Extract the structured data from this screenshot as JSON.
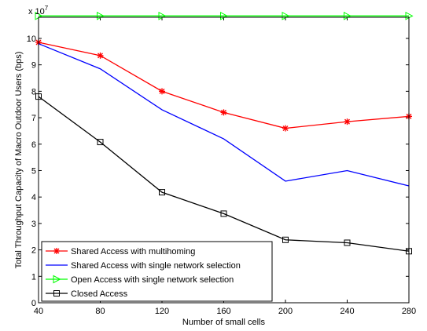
{
  "chart_data": {
    "type": "line",
    "title": "",
    "xlabel": "Number of small cells",
    "ylabel": "Total Throughput Capacity of Macro Outdoor Users (bps)",
    "y_multiplier_label": "x 10",
    "y_multiplier_exponent": "7",
    "x": [
      40,
      80,
      120,
      160,
      200,
      240,
      280
    ],
    "x_ticks": [
      "40",
      "80",
      "120",
      "160",
      "200",
      "240",
      "280"
    ],
    "y_ticks": [
      "0",
      "1",
      "2",
      "3",
      "4",
      "5",
      "6",
      "7",
      "8",
      "9",
      "10"
    ],
    "xlim": [
      40,
      280
    ],
    "ylim": [
      0,
      10.8
    ],
    "y_scale": 10000000,
    "grid": false,
    "legend_position": "bottom-left",
    "series": [
      {
        "name": "Shared Access with multihoming",
        "color": "#ff0000",
        "marker": "asterisk",
        "values": [
          9.85,
          9.35,
          8.0,
          7.2,
          6.6,
          6.85,
          7.05
        ]
      },
      {
        "name": "Shared Access with single network selection",
        "color": "#0000ff",
        "marker": "none",
        "values": [
          9.8,
          8.85,
          7.3,
          6.2,
          4.6,
          5.0,
          4.42
        ]
      },
      {
        "name": "Open Access with single network selection",
        "color": "#00ff00",
        "marker": "triangle-right",
        "values": [
          10.85,
          10.85,
          10.85,
          10.85,
          10.85,
          10.85,
          10.85
        ]
      },
      {
        "name": "Closed Access",
        "color": "#000000",
        "marker": "square",
        "values": [
          7.8,
          6.08,
          4.18,
          3.37,
          2.38,
          2.27,
          1.95
        ]
      }
    ]
  }
}
